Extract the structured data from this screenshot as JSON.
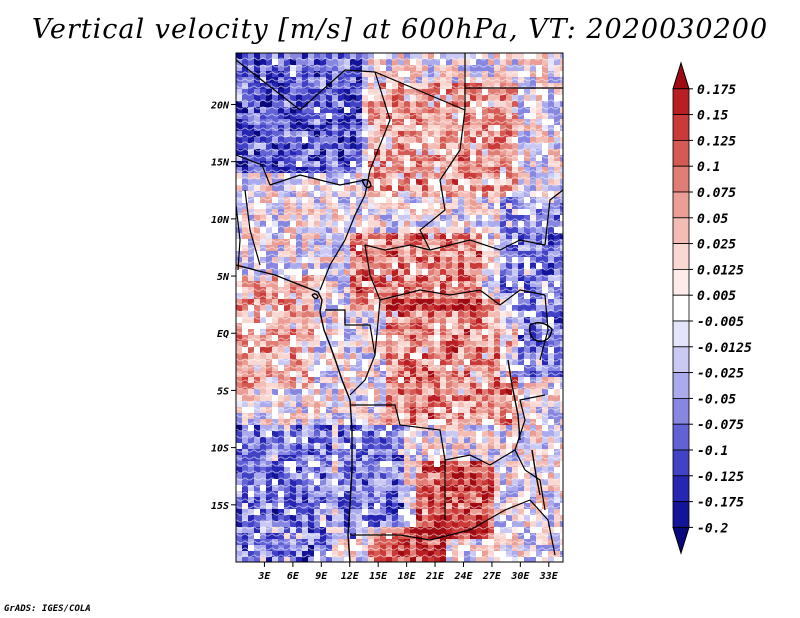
{
  "title": "Vertical velocity [m/s] at 600hPa, VT: 2020030200",
  "credit": "GrADS: IGES/COLA",
  "map": {
    "variable": "Vertical velocity",
    "units": "m/s",
    "level": "600hPa",
    "valid_time": "2020030200",
    "lon_range": [
      0,
      34.5
    ],
    "lat_range": [
      -20,
      24.5
    ],
    "x_ticks": [
      {
        "lon": 3,
        "label": "3E"
      },
      {
        "lon": 6,
        "label": "6E"
      },
      {
        "lon": 9,
        "label": "9E"
      },
      {
        "lon": 12,
        "label": "12E"
      },
      {
        "lon": 15,
        "label": "15E"
      },
      {
        "lon": 18,
        "label": "18E"
      },
      {
        "lon": 21,
        "label": "21E"
      },
      {
        "lon": 24,
        "label": "24E"
      },
      {
        "lon": 27,
        "label": "27E"
      },
      {
        "lon": 30,
        "label": "30E"
      },
      {
        "lon": 33,
        "label": "33E"
      }
    ],
    "y_ticks": [
      {
        "lat": 20,
        "label": "20N"
      },
      {
        "lat": 15,
        "label": "15N"
      },
      {
        "lat": 10,
        "label": "10N"
      },
      {
        "lat": 5,
        "label": "5N"
      },
      {
        "lat": 0,
        "label": "EQ"
      },
      {
        "lat": -5,
        "label": "5S"
      },
      {
        "lat": -10,
        "label": "10S"
      },
      {
        "lat": -15,
        "label": "15S"
      }
    ],
    "field_regions": [
      {
        "lon0": 0,
        "lon1": 13,
        "lat0": 14,
        "lat1": 24.5,
        "sign": -1,
        "strength": 0.6
      },
      {
        "lon0": 14,
        "lon1": 30,
        "lat0": 12,
        "lat1": 22,
        "sign": 1,
        "strength": 0.35
      },
      {
        "lon0": 12,
        "lon1": 26,
        "lat0": 2,
        "lat1": 9,
        "sign": 1,
        "strength": 0.5
      },
      {
        "lon0": 16,
        "lon1": 30,
        "lat0": -8,
        "lat1": 3,
        "sign": 1,
        "strength": 0.45
      },
      {
        "lon0": 0,
        "lon1": 8,
        "lat0": -5,
        "lat1": 5,
        "sign": 1,
        "strength": 0.3
      },
      {
        "lon0": 0,
        "lon1": 10,
        "lat0": -20,
        "lat1": -8,
        "sign": -1,
        "strength": 0.45
      },
      {
        "lon0": 11,
        "lon1": 18,
        "lat0": -18,
        "lat1": -8,
        "sign": -1,
        "strength": 0.45
      },
      {
        "lon0": 28,
        "lon1": 34.5,
        "lat0": -4,
        "lat1": 12,
        "sign": -1,
        "strength": 0.4
      },
      {
        "lon0": 19,
        "lon1": 27,
        "lat0": -18,
        "lat1": -11,
        "sign": 1,
        "strength": 0.8
      },
      {
        "lon0": 14,
        "lon1": 22,
        "lat0": -20,
        "lat1": -17,
        "sign": 1,
        "strength": 0.7
      }
    ]
  },
  "colorbar": {
    "labels": [
      "0.175",
      "0.15",
      "0.125",
      "0.1",
      "0.075",
      "0.05",
      "0.025",
      "0.0125",
      "0.005",
      "-0.005",
      "-0.0125",
      "-0.025",
      "-0.05",
      "-0.075",
      "-0.1",
      "-0.125",
      "-0.175",
      "-0.2"
    ],
    "colors": [
      "#a00a12",
      "#b81e22",
      "#c93a38",
      "#d65a54",
      "#e07e76",
      "#ea9e96",
      "#f3bdb6",
      "#f9d8d3",
      "#fdecea",
      "#ffffff",
      "#e4e4fb",
      "#c9c9f4",
      "#aaaaec",
      "#8787e2",
      "#6262d6",
      "#4242c6",
      "#2626b2",
      "#14149a",
      "#08087c"
    ]
  }
}
